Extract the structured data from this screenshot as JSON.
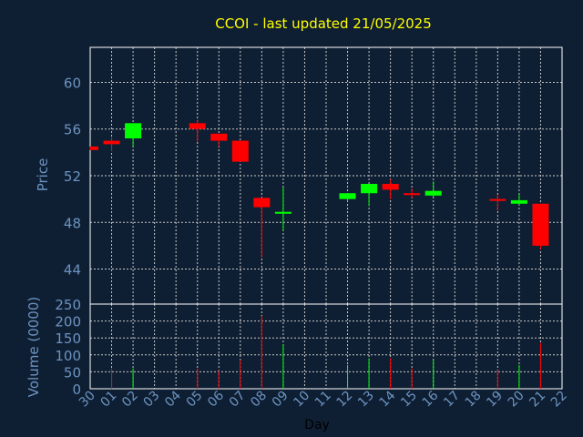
{
  "chart_data": {
    "type": "candlestick",
    "title": "CCOI - last updated 21/05/2025",
    "price_axis": {
      "label": "Price",
      "ylim": [
        41,
        63
      ],
      "ticks": [
        44,
        48,
        52,
        56,
        60
      ]
    },
    "volume_axis": {
      "label": "Volume (0000)",
      "ylim": [
        0,
        250
      ],
      "ticks": [
        0,
        50,
        100,
        150,
        200,
        250
      ]
    },
    "xlabel": "Day",
    "x_ticks": [
      "30",
      "01",
      "02",
      "03",
      "04",
      "05",
      "06",
      "07",
      "08",
      "09",
      "10",
      "11",
      "12",
      "13",
      "14",
      "15",
      "16",
      "17",
      "18",
      "19",
      "20",
      "21",
      "22"
    ],
    "grid": true,
    "colors": {
      "up": "#00ff00",
      "down": "#ff0000",
      "title": "#ffff00",
      "axis": "#6c93c0",
      "background": "#0f1f33"
    },
    "candles": [
      {
        "day": "30",
        "open": 54.5,
        "close": 54.2,
        "high": 54.5,
        "low": 54.2,
        "volume": 0
      },
      {
        "day": "01",
        "open": 55.0,
        "close": 54.7,
        "high": 55.3,
        "low": 54.1,
        "volume": 60
      },
      {
        "day": "02",
        "open": 55.2,
        "close": 56.5,
        "high": 56.5,
        "low": 54.5,
        "volume": 60
      },
      {
        "day": "05",
        "open": 56.5,
        "close": 56.0,
        "high": 56.8,
        "low": 54.9,
        "volume": 60
      },
      {
        "day": "06",
        "open": 55.6,
        "close": 55.0,
        "high": 55.6,
        "low": 54.5,
        "volume": 55
      },
      {
        "day": "07",
        "open": 55.0,
        "close": 53.2,
        "high": 55.0,
        "low": 53.2,
        "volume": 85
      },
      {
        "day": "08",
        "open": 50.1,
        "close": 49.3,
        "high": 50.1,
        "low": 45.0,
        "volume": 215
      },
      {
        "day": "09",
        "open": 48.8,
        "close": 48.9,
        "high": 51.0,
        "low": 47.3,
        "volume": 130
      },
      {
        "day": "12",
        "open": 50.0,
        "close": 50.5,
        "high": 50.5,
        "low": 49.8,
        "volume": 70
      },
      {
        "day": "13",
        "open": 50.5,
        "close": 51.3,
        "high": 51.3,
        "low": 49.4,
        "volume": 90
      },
      {
        "day": "14",
        "open": 51.3,
        "close": 50.8,
        "high": 51.7,
        "low": 50.0,
        "volume": 90
      },
      {
        "day": "15",
        "open": 50.5,
        "close": 50.4,
        "high": 50.9,
        "low": 50.1,
        "volume": 60
      },
      {
        "day": "16",
        "open": 50.3,
        "close": 50.7,
        "high": 51.5,
        "low": 50.2,
        "volume": 85
      },
      {
        "day": "19",
        "open": 50.0,
        "close": 49.9,
        "high": 50.4,
        "low": 49.0,
        "volume": 55
      },
      {
        "day": "20",
        "open": 49.6,
        "close": 49.9,
        "high": 50.4,
        "low": 49.5,
        "volume": 70
      },
      {
        "day": "21",
        "open": 49.6,
        "close": 46.0,
        "high": 49.6,
        "low": 45.7,
        "volume": 135
      }
    ]
  }
}
